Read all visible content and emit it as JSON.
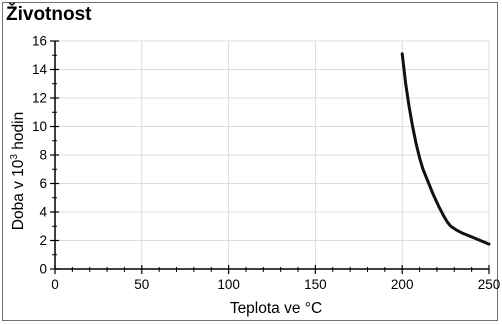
{
  "chart_data": {
    "type": "line",
    "title": "Životnost",
    "xlabel": "Teplota ve °C",
    "ylabel": {
      "prefix": "Doba v 10",
      "superscript": "3",
      "suffix": " hodin"
    },
    "xlim": [
      0,
      250
    ],
    "ylim": [
      0,
      16
    ],
    "xticks": [
      0,
      50,
      100,
      150,
      200,
      250
    ],
    "yticks": [
      0,
      2,
      4,
      6,
      8,
      10,
      12,
      14,
      16
    ],
    "xtick_labels": [
      "0",
      "50",
      "100",
      "150",
      "200",
      "250"
    ],
    "ytick_labels": [
      "0",
      "2",
      "4",
      "6",
      "8",
      "10",
      "12",
      "14",
      "16"
    ],
    "grid": true,
    "series": [
      {
        "x": [
          200,
          202,
          204,
          206,
          208,
          210,
          212,
          215,
          218,
          221,
          224,
          226,
          228,
          231,
          235,
          240,
          245,
          250
        ],
        "y": [
          15.1,
          13.0,
          11.4,
          10.0,
          8.8,
          7.8,
          7.0,
          6.1,
          5.2,
          4.4,
          3.7,
          3.3,
          3.0,
          2.75,
          2.5,
          2.25,
          2.0,
          1.75
        ],
        "color": "#111111"
      }
    ]
  }
}
